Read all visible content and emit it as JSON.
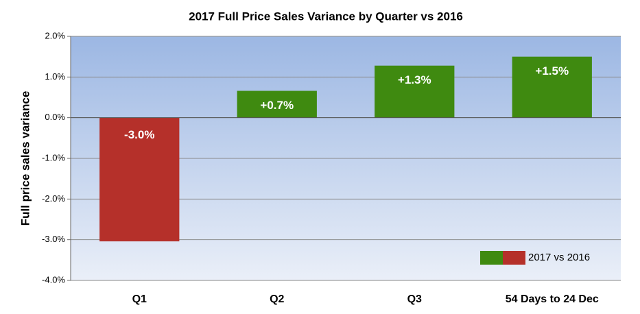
{
  "chart_data": {
    "type": "bar",
    "title": "2017 Full Price Sales Variance by Quarter vs 2016",
    "y_label": "Full price sales variance",
    "categories": [
      "Q1",
      "Q2",
      "Q3",
      "54 Days to 24 Dec"
    ],
    "series": [
      {
        "name": "2017 vs 2016",
        "color": "#3f8a10",
        "negative_color": "#b5302a",
        "values": [
          -3.04,
          0.66,
          1.28,
          1.5
        ],
        "value_labels": [
          "-3.0%",
          "+0.7%",
          "+1.3%",
          "+1.5%"
        ]
      }
    ],
    "ylim": [
      -4,
      2
    ],
    "yticks": [
      {
        "value": -4,
        "label": "-4.0%"
      },
      {
        "value": -3,
        "label": "-3.0%"
      },
      {
        "value": -2,
        "label": "-2.0%"
      },
      {
        "value": -1,
        "label": "-1.0%"
      },
      {
        "value": 0,
        "label": "0.0%"
      },
      {
        "value": 1,
        "label": "1.0%"
      },
      {
        "value": 2,
        "label": "2.0%"
      }
    ],
    "grid": true,
    "legend": "lower right"
  }
}
